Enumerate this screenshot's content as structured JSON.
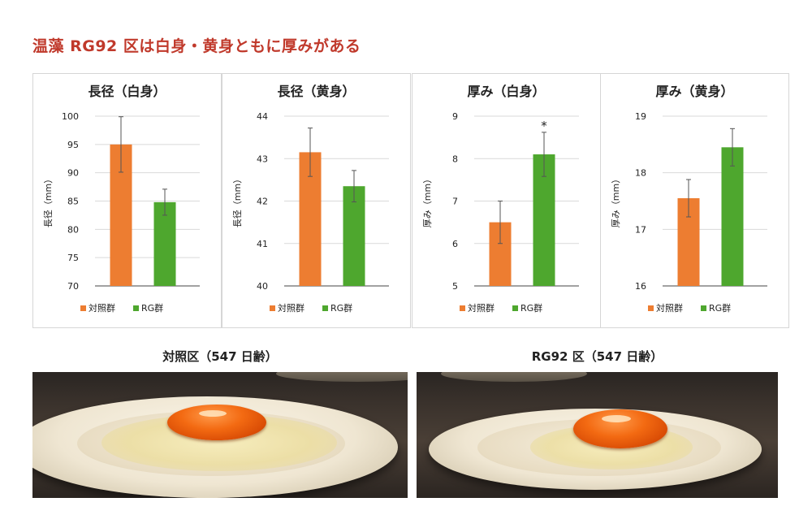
{
  "headline": "温藻 RG92 区は白身・黄身ともに厚みがある",
  "colors": {
    "control": "#ed7d31",
    "rg": "#4ea72e",
    "headline": "#c0392b"
  },
  "legend": {
    "control": "対照群",
    "rg": "RG群"
  },
  "chart_data": [
    {
      "type": "bar",
      "title": "長径（白身）",
      "ylabel": "長径（mm）",
      "categories": [
        "対照群",
        "RG群"
      ],
      "values": [
        95.0,
        84.8
      ],
      "errors": [
        4.9,
        2.3
      ],
      "ylim": [
        70,
        100
      ],
      "yticks": [
        "70",
        "75",
        "80",
        "85",
        "90",
        "95",
        "100"
      ],
      "ytick_values": [
        70,
        75,
        80,
        85,
        90,
        95,
        100
      ],
      "annotation": ""
    },
    {
      "type": "bar",
      "title": "長径（黄身）",
      "ylabel": "長径（mm）",
      "categories": [
        "対照群",
        "RG群"
      ],
      "values": [
        43.15,
        42.35
      ],
      "errors": [
        0.57,
        0.37
      ],
      "ylim": [
        40,
        44
      ],
      "yticks": [
        "40",
        "41",
        "42",
        "43",
        "44"
      ],
      "ytick_values": [
        40,
        41,
        42,
        43,
        44
      ],
      "annotation": ""
    },
    {
      "type": "bar",
      "title": "厚み（白身）",
      "ylabel": "厚み（mm）",
      "categories": [
        "対照群",
        "RG群"
      ],
      "values": [
        6.5,
        8.1
      ],
      "errors": [
        0.5,
        0.52
      ],
      "ylim": [
        5,
        9
      ],
      "yticks": [
        "5",
        "6",
        "7",
        "8",
        "9"
      ],
      "ytick_values": [
        5,
        6,
        7,
        8,
        9
      ],
      "annotation": "*"
    },
    {
      "type": "bar",
      "title": "厚み（黄身）",
      "ylabel": "厚み（mm）",
      "categories": [
        "対照群",
        "RG群"
      ],
      "values": [
        17.55,
        18.45
      ],
      "errors": [
        0.33,
        0.33
      ],
      "ylim": [
        16,
        19
      ],
      "yticks": [
        "16",
        "17",
        "18",
        "19"
      ],
      "ytick_values": [
        16,
        17,
        18,
        19
      ],
      "annotation": ""
    }
  ],
  "photos": [
    {
      "caption": "対照区（547 日齢）",
      "icon": "fried-egg-control-photo"
    },
    {
      "caption": "RG92 区（547 日齢）",
      "icon": "fried-egg-rg92-photo"
    }
  ]
}
